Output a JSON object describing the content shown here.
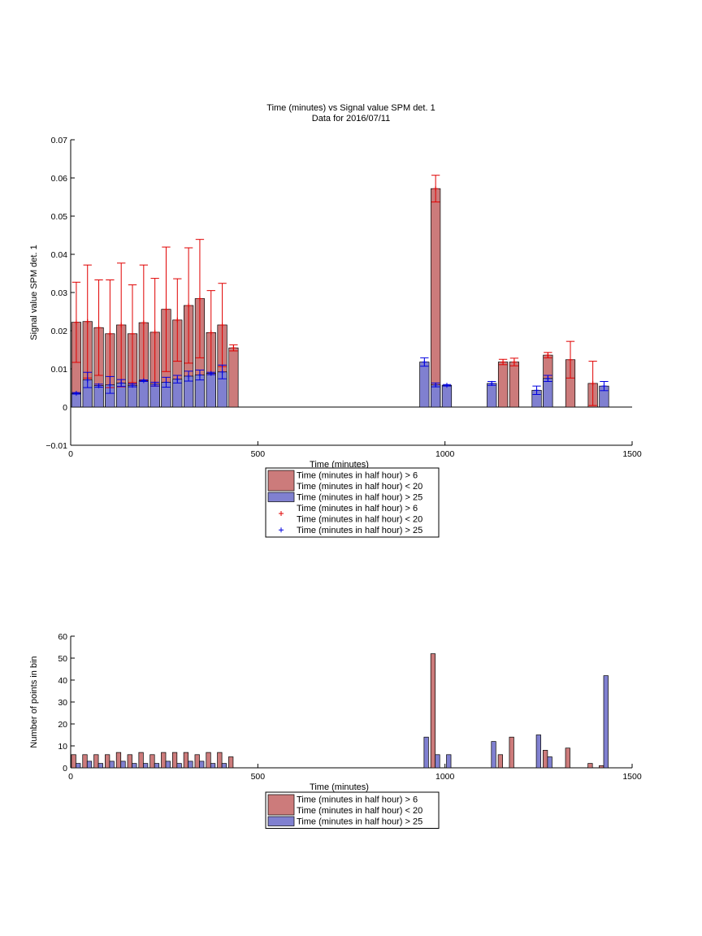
{
  "figure": {
    "title": "Time (minutes) vs Signal value SPM det. 1",
    "subtitle": "Data for 2016/07/11"
  },
  "colors": {
    "series_a_fill": "#cc7b7b",
    "series_b_fill": "#8080d0",
    "series_a_err": "#e00000",
    "series_b_err": "#0000e0"
  },
  "chart_data": [
    {
      "type": "bar",
      "xlabel": "Time (minutes)",
      "ylabel": "Signal value SPM det. 1",
      "xlim": [
        0,
        1500
      ],
      "ylim": [
        -0.01,
        0.07
      ],
      "xticks": [
        0,
        500,
        1000,
        1500
      ],
      "yticks": [
        -0.01,
        0,
        0.01,
        0.02,
        0.03,
        0.04,
        0.05,
        0.06,
        0.07
      ],
      "ytick_labels": [
        "−0.01",
        "0",
        "0.01",
        "0.02",
        "0.03",
        "0.04",
        "0.05",
        "0.06",
        "0.07"
      ],
      "bar_width": 25,
      "legend_position": "below",
      "legend": [
        {
          "kind": "bar",
          "series": 0,
          "lines": [
            "Time (minutes in half hour) > 6",
            "Time (minutes in half hour) < 20"
          ]
        },
        {
          "kind": "bar",
          "series": 1,
          "lines": [
            "Time (minutes in half hour) > 25"
          ]
        },
        {
          "kind": "marker",
          "series": 0,
          "lines": [
            "Time (minutes in half hour) > 6",
            "Time (minutes in half hour) < 20"
          ]
        },
        {
          "kind": "marker",
          "series": 1,
          "lines": [
            "Time (minutes in half hour) > 25"
          ]
        }
      ],
      "series": [
        {
          "x": [
            15,
            45,
            75,
            105,
            135,
            165,
            195,
            225,
            255,
            285,
            315,
            345,
            375,
            405,
            435,
            975,
            1155,
            1185,
            1275,
            1335,
            1395
          ],
          "values": [
            0.0222,
            0.0224,
            0.0208,
            0.0192,
            0.0215,
            0.0192,
            0.0221,
            0.0196,
            0.0256,
            0.0228,
            0.0266,
            0.0284,
            0.0195,
            0.0215,
            0.0155,
            0.0572,
            0.0118,
            0.0118,
            0.0136,
            0.0124,
            0.0062
          ],
          "err": [
            0.0105,
            0.0148,
            0.0125,
            0.0141,
            0.0162,
            0.0128,
            0.0151,
            0.0141,
            0.0163,
            0.0108,
            0.0151,
            0.0155,
            0.011,
            0.0109,
            0.0008,
            0.0035,
            0.0007,
            0.001,
            0.0007,
            0.0048,
            0.0058
          ]
        },
        {
          "x": [
            15,
            45,
            75,
            105,
            135,
            165,
            195,
            225,
            255,
            285,
            315,
            345,
            375,
            405,
            945,
            975,
            1005,
            1125,
            1245,
            1275,
            1425
          ],
          "values": [
            0.0036,
            0.0071,
            0.0056,
            0.0058,
            0.0063,
            0.0057,
            0.0069,
            0.006,
            0.0065,
            0.0073,
            0.0081,
            0.0084,
            0.0088,
            0.0092,
            0.0118,
            0.0058,
            0.0057,
            0.0062,
            0.0044,
            0.0075,
            0.0055
          ],
          "err": [
            0.0002,
            0.002,
            0.0004,
            0.0022,
            0.0009,
            0.0004,
            0.0002,
            0.0005,
            0.0013,
            0.001,
            0.0013,
            0.0013,
            0.0003,
            0.0018,
            0.0011,
            0.0005,
            0.0002,
            0.0005,
            0.0011,
            0.0008,
            0.0012
          ]
        }
      ]
    },
    {
      "type": "bar",
      "xlabel": "Time (minutes)",
      "ylabel": "Number of points in bin",
      "xlim": [
        0,
        1500
      ],
      "ylim": [
        0,
        60
      ],
      "xticks": [
        0,
        500,
        1000,
        1500
      ],
      "yticks": [
        0,
        10,
        20,
        30,
        40,
        50,
        60
      ],
      "ytick_labels": [
        "0",
        "10",
        "20",
        "30",
        "40",
        "50",
        "60"
      ],
      "bar_width": 12,
      "legend_position": "below",
      "legend": [
        {
          "kind": "bar",
          "series": 0,
          "lines": [
            "Time (minutes in half hour) > 6",
            "Time (minutes in half hour) < 20"
          ]
        },
        {
          "kind": "bar",
          "series": 1,
          "lines": [
            "Time (minutes in half hour) > 25"
          ]
        }
      ],
      "series": [
        {
          "x": [
            8,
            38,
            68,
            98,
            128,
            158,
            188,
            218,
            248,
            278,
            308,
            338,
            368,
            398,
            428,
            968,
            1148,
            1178,
            1268,
            1328,
            1388,
            1418
          ],
          "values": [
            6,
            6,
            6,
            6,
            7,
            6,
            7,
            6,
            7,
            7,
            7,
            6,
            7,
            7,
            5,
            52,
            6,
            14,
            8,
            9,
            2,
            1
          ]
        },
        {
          "x": [
            20,
            50,
            80,
            110,
            140,
            170,
            200,
            230,
            260,
            290,
            320,
            350,
            380,
            410,
            950,
            980,
            1010,
            1130,
            1250,
            1280,
            1430
          ],
          "values": [
            2,
            3,
            2,
            3,
            3,
            2,
            2,
            2,
            3,
            2,
            3,
            3,
            2,
            2,
            14,
            6,
            6,
            12,
            15,
            5,
            42
          ]
        }
      ]
    }
  ]
}
